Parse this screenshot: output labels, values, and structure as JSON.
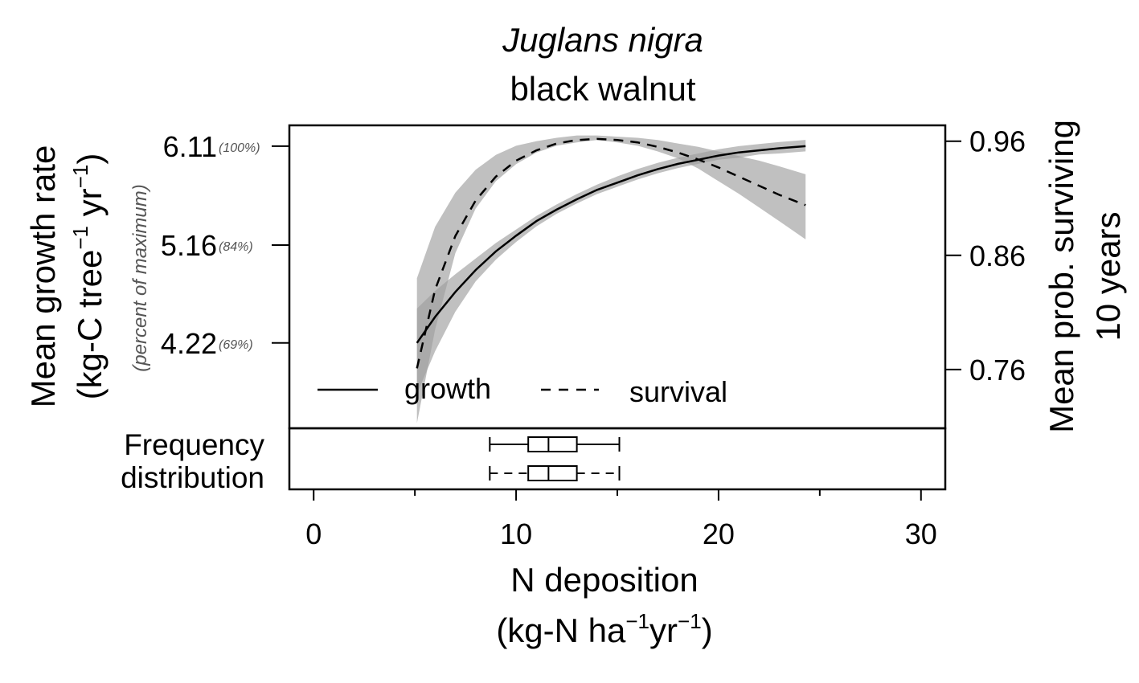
{
  "title": {
    "species": "Juglans nigra",
    "common_name": "black walnut"
  },
  "left_axis": {
    "label_line1": "Mean growth rate",
    "label_line2_prefix": "(kg-C tree",
    "label_line2_sup1": "−1",
    "label_line2_mid": " yr",
    "label_line2_sup2": "−1",
    "label_line2_suffix": ")",
    "sublabel": "(percent of maximum)",
    "ticks": [
      {
        "value": 6.11,
        "label": "6.11",
        "pct": "(100%)"
      },
      {
        "value": 5.16,
        "label": "5.16",
        "pct": "(84%)"
      },
      {
        "value": 4.22,
        "label": "4.22",
        "pct": "(69%)"
      }
    ]
  },
  "right_axis": {
    "label_line1": "Mean prob. surviving",
    "label_line2": "10 years",
    "ticks": [
      {
        "value": 0.96,
        "label": "0.96"
      },
      {
        "value": 0.86,
        "label": "0.86"
      },
      {
        "value": 0.76,
        "label": "0.76"
      }
    ]
  },
  "x_axis": {
    "label_line1": "N deposition",
    "label_line2_prefix": "(kg-N ha",
    "label_line2_sup1": "−1",
    "label_line2_mid": "yr",
    "label_line2_sup2": "−1",
    "label_line2_suffix": ")",
    "ticks": [
      {
        "value": 0,
        "label": "0"
      },
      {
        "value": 10,
        "label": "10"
      },
      {
        "value": 20,
        "label": "20"
      },
      {
        "value": 30,
        "label": "30"
      }
    ],
    "minor_ticks": [
      5,
      15,
      25
    ]
  },
  "legend": {
    "growth": "growth",
    "survival": "survival"
  },
  "freq_label": {
    "line1": "Frequency",
    "line2": "distribution"
  },
  "colors": {
    "ci_band": "#9e9e9e",
    "line": "#000000"
  },
  "chart_data": {
    "type": "line",
    "xlim": [
      -1.2,
      31.2
    ],
    "ylim_growth": [
      3.4,
      6.31
    ],
    "ylim_survival": [
      0.7085,
      0.9739
    ],
    "series": [
      {
        "name": "growth",
        "style": "solid",
        "axis": "left",
        "x": [
          5.1,
          6.0,
          7.0,
          8.0,
          9.0,
          10.0,
          11.0,
          12.0,
          13.0,
          14.0,
          15.0,
          16.0,
          17.0,
          18.0,
          19.0,
          20.0,
          21.0,
          22.0,
          23.0,
          24.3
        ],
        "y": [
          4.22,
          4.47,
          4.71,
          4.92,
          5.1,
          5.25,
          5.39,
          5.5,
          5.6,
          5.69,
          5.76,
          5.83,
          5.89,
          5.94,
          5.98,
          6.02,
          6.05,
          6.07,
          6.09,
          6.11
        ],
        "ci_low": [
          3.73,
          4.14,
          4.52,
          4.81,
          5.02,
          5.19,
          5.34,
          5.46,
          5.56,
          5.65,
          5.72,
          5.79,
          5.85,
          5.9,
          5.94,
          5.98,
          6.0,
          6.03,
          6.04,
          6.06
        ],
        "ci_high": [
          4.55,
          4.72,
          4.88,
          5.03,
          5.18,
          5.31,
          5.44,
          5.55,
          5.65,
          5.74,
          5.82,
          5.89,
          5.95,
          6.0,
          6.04,
          6.08,
          6.11,
          6.13,
          6.15,
          6.17
        ]
      },
      {
        "name": "survival",
        "style": "dashed",
        "axis": "right",
        "x": [
          5.1,
          6.0,
          7.0,
          8.0,
          9.0,
          10.0,
          11.0,
          12.0,
          13.0,
          14.0,
          15.0,
          16.0,
          17.0,
          18.0,
          19.0,
          20.0,
          21.0,
          22.0,
          23.0,
          24.3
        ],
        "y": [
          0.761,
          0.83,
          0.877,
          0.908,
          0.929,
          0.943,
          0.952,
          0.958,
          0.961,
          0.962,
          0.961,
          0.959,
          0.955,
          0.95,
          0.944,
          0.937,
          0.929,
          0.921,
          0.913,
          0.904
        ],
        "ci_low": [
          0.713,
          0.795,
          0.862,
          0.901,
          0.925,
          0.94,
          0.95,
          0.956,
          0.959,
          0.961,
          0.959,
          0.956,
          0.951,
          0.945,
          0.936,
          0.925,
          0.914,
          0.902,
          0.89,
          0.874
        ],
        "ci_high": [
          0.84,
          0.885,
          0.915,
          0.935,
          0.948,
          0.956,
          0.96,
          0.963,
          0.965,
          0.965,
          0.964,
          0.963,
          0.961,
          0.958,
          0.955,
          0.951,
          0.947,
          0.943,
          0.938,
          0.931
        ]
      }
    ],
    "boxplots": [
      {
        "series": "growth",
        "whisker_low": 8.7,
        "q1": 10.6,
        "median": 11.6,
        "q3": 13.0,
        "whisker_high": 15.1
      },
      {
        "series": "survival",
        "whisker_low": 8.7,
        "q1": 10.6,
        "median": 11.6,
        "q3": 13.0,
        "whisker_high": 15.1
      }
    ]
  }
}
